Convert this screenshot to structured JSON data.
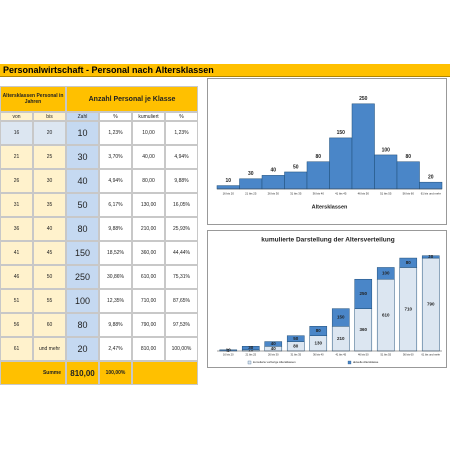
{
  "header": {
    "title": "Personalwirtschaft - Personal nach Altersklassen"
  },
  "table": {
    "group_headers": [
      "Altersklassen Personal in Jahren",
      "Anzahl Personal je Klasse"
    ],
    "columns": [
      "von",
      "bis",
      "Zahl",
      "%",
      "kumuliert",
      "%"
    ],
    "rows": [
      [
        "16",
        "20",
        "10",
        "1,23%",
        "10,00",
        "1,23%"
      ],
      [
        "21",
        "25",
        "30",
        "3,70%",
        "40,00",
        "4,94%"
      ],
      [
        "26",
        "30",
        "40",
        "4,94%",
        "80,00",
        "9,88%"
      ],
      [
        "31",
        "35",
        "50",
        "6,17%",
        "130,00",
        "16,05%"
      ],
      [
        "36",
        "40",
        "80",
        "9,88%",
        "210,00",
        "25,93%"
      ],
      [
        "41",
        "45",
        "150",
        "18,52%",
        "360,00",
        "44,44%"
      ],
      [
        "46",
        "50",
        "250",
        "30,86%",
        "610,00",
        "75,31%"
      ],
      [
        "51",
        "55",
        "100",
        "12,35%",
        "710,00",
        "87,65%"
      ],
      [
        "56",
        "60",
        "80",
        "9,88%",
        "790,00",
        "97,53%"
      ],
      [
        "61",
        "und mehr",
        "20",
        "2,47%",
        "810,00",
        "100,00%"
      ]
    ],
    "total": [
      "Summe",
      "810,00",
      "100,00%"
    ]
  },
  "chart_data": [
    {
      "type": "bar",
      "x_label": "Altersklassen",
      "categories": [
        "16 bis 20",
        "21 bis 25",
        "26 bis 30",
        "31 bis 35",
        "36 bis 40",
        "41 bis 45",
        "46 bis 50",
        "51 bis 55",
        "56 bis 60",
        "61 bis und mehr"
      ],
      "values": [
        10,
        30,
        40,
        50,
        80,
        150,
        250,
        100,
        80,
        20
      ],
      "color": "#4a86c8",
      "ylim": [
        0,
        270
      ]
    },
    {
      "type": "stacked_bar",
      "title": "kumulierte Darstellung der Altersverteilung",
      "categories": [
        "16 bis 20",
        "21 bis 25",
        "26 bis 30",
        "31 bis 35",
        "36 bis 40",
        "41 bis 45",
        "46 bis 50",
        "51 bis 55",
        "56 bis 60",
        "61 bis und mehr"
      ],
      "series": [
        {
          "name": "kumulierte vorherige Altersklassen",
          "color": "#dce6f1",
          "values": [
            0,
            10,
            40,
            80,
            130,
            210,
            360,
            610,
            710,
            790
          ]
        },
        {
          "name": "aktuelle Altersklasse",
          "color": "#4a86c8",
          "values": [
            10,
            30,
            40,
            50,
            80,
            150,
            250,
            100,
            80,
            20
          ]
        }
      ],
      "ylim": [
        0,
        850
      ],
      "legend": "bottom"
    }
  ]
}
